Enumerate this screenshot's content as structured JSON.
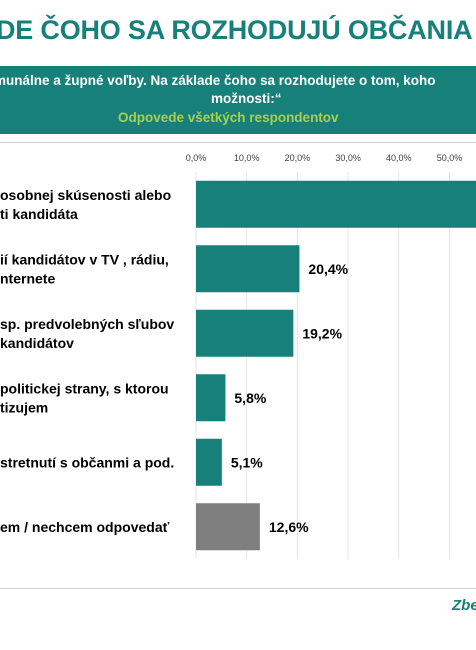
{
  "header": {
    "title": "DE ČOHO SA ROZHODUJÚ OBČANIA PRI V",
    "question_line1": "munálne a župné voľby. Na základe čoho sa rozhodujete o tom, koho",
    "question_line2": "možnosti:“",
    "subtitle": "Odpovede všetkých respondentov"
  },
  "footer": {
    "text": "Zbe"
  },
  "chart_data": {
    "type": "bar",
    "orientation": "horizontal",
    "x_tick_labels": [
      "0,0%",
      "10,0%",
      "20,0%",
      "30,0%",
      "40,0%",
      "50,0%"
    ],
    "xlim": [
      0,
      54
    ],
    "grid": true,
    "categories": [
      [
        "osobnej skúsenosti alebo",
        "ti kandidáta"
      ],
      [
        "ií kandidátov v TV , rádiu,",
        "nternete"
      ],
      [
        "sp. predvolebných sľubov",
        " kandidátov"
      ],
      [
        "politickej strany, s ktorou",
        "tizujem"
      ],
      [
        "stretnutí s občanmi a pod."
      ],
      [
        "em / nechcem odpovedať"
      ]
    ],
    "values": [
      null,
      20.4,
      19.2,
      5.8,
      5.1,
      12.6
    ],
    "value_labels": [
      "",
      "20,4%",
      "19,2%",
      "5,8%",
      "5,1%",
      "12,6%"
    ],
    "colors": {
      "bar": "#17807a",
      "bar_other": "#7f7f7f",
      "grid": "#e6e6e6",
      "axis_text": "#404040"
    }
  }
}
